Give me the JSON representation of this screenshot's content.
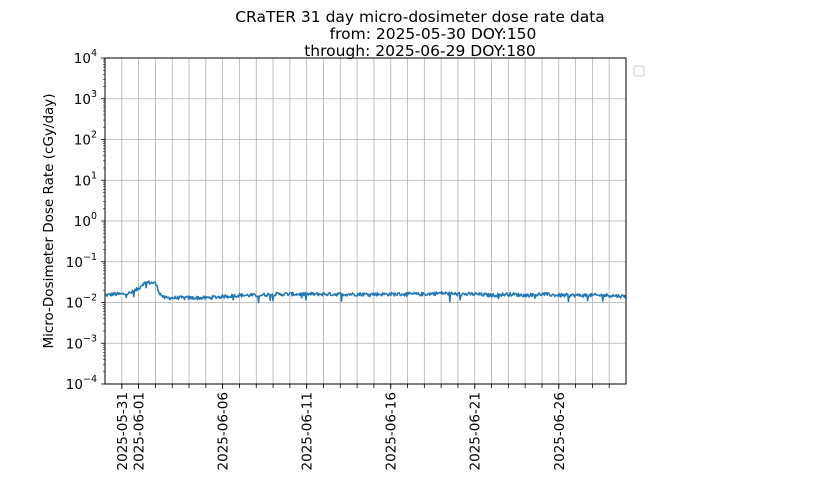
{
  "chart_data": {
    "type": "line",
    "title_lines": [
      "CRaTER 31 day micro-dosimeter dose rate data",
      "from: 2025-05-30 DOY:150",
      "through: 2025-06-29 DOY:180"
    ],
    "xlabel": "",
    "ylabel": "Micro-Dosimeter Dose Rate (cGy/day)",
    "y_scale": "log",
    "ylim": [
      0.0001,
      10000
    ],
    "y_ticks": [
      {
        "base": "10",
        "exp": "4",
        "value": 10000
      },
      {
        "base": "10",
        "exp": "3",
        "value": 1000
      },
      {
        "base": "10",
        "exp": "2",
        "value": 100
      },
      {
        "base": "10",
        "exp": "1",
        "value": 10
      },
      {
        "base": "10",
        "exp": "0",
        "value": 1
      },
      {
        "base": "10",
        "exp": "−1",
        "value": 0.1
      },
      {
        "base": "10",
        "exp": "−2",
        "value": 0.01
      },
      {
        "base": "10",
        "exp": "−3",
        "value": 0.001
      },
      {
        "base": "10",
        "exp": "−4",
        "value": 0.0001
      }
    ],
    "xlim": [
      "2025-05-30",
      "2025-06-30"
    ],
    "x_tick_labels": [
      "2025-05-31",
      "2025-06-01",
      "2025-06-06",
      "2025-06-11",
      "2025-06-16",
      "2025-06-21",
      "2025-06-26"
    ],
    "x_gridlines": "daily",
    "grid": true,
    "legend": "outside top-right, empty",
    "series": [
      {
        "color": "#1f77b4",
        "points": [
          [
            "2025-05-30",
            0.015
          ],
          [
            "2025-05-30 12:00",
            0.016
          ],
          [
            "2025-05-31",
            0.016
          ],
          [
            "2025-05-31 12:00",
            0.017
          ],
          [
            "2025-06-01",
            0.022
          ],
          [
            "2025-06-01 06:00",
            0.029
          ],
          [
            "2025-06-01 12:00",
            0.031
          ],
          [
            "2025-06-02",
            0.03
          ],
          [
            "2025-06-02 06:00",
            0.017
          ],
          [
            "2025-06-02 12:00",
            0.013
          ],
          [
            "2025-06-03",
            0.013
          ],
          [
            "2025-06-04",
            0.013
          ],
          [
            "2025-06-05",
            0.013
          ],
          [
            "2025-06-06",
            0.014
          ],
          [
            "2025-06-07",
            0.015
          ],
          [
            "2025-06-08",
            0.015
          ],
          [
            "2025-06-09",
            0.016
          ],
          [
            "2025-06-10",
            0.016
          ],
          [
            "2025-06-11",
            0.016
          ],
          [
            "2025-06-12",
            0.016
          ],
          [
            "2025-06-13",
            0.016
          ],
          [
            "2025-06-14",
            0.016
          ],
          [
            "2025-06-15",
            0.016
          ],
          [
            "2025-06-16",
            0.016
          ],
          [
            "2025-06-17",
            0.016
          ],
          [
            "2025-06-18",
            0.016
          ],
          [
            "2025-06-19",
            0.017
          ],
          [
            "2025-06-20",
            0.016
          ],
          [
            "2025-06-21",
            0.016
          ],
          [
            "2025-06-22",
            0.015
          ],
          [
            "2025-06-23",
            0.016
          ],
          [
            "2025-06-24",
            0.015
          ],
          [
            "2025-06-25",
            0.016
          ],
          [
            "2025-06-26",
            0.015
          ],
          [
            "2025-06-27",
            0.015
          ],
          [
            "2025-06-28",
            0.015
          ],
          [
            "2025-06-29",
            0.015
          ],
          [
            "2025-06-30",
            0.014
          ]
        ]
      }
    ]
  }
}
